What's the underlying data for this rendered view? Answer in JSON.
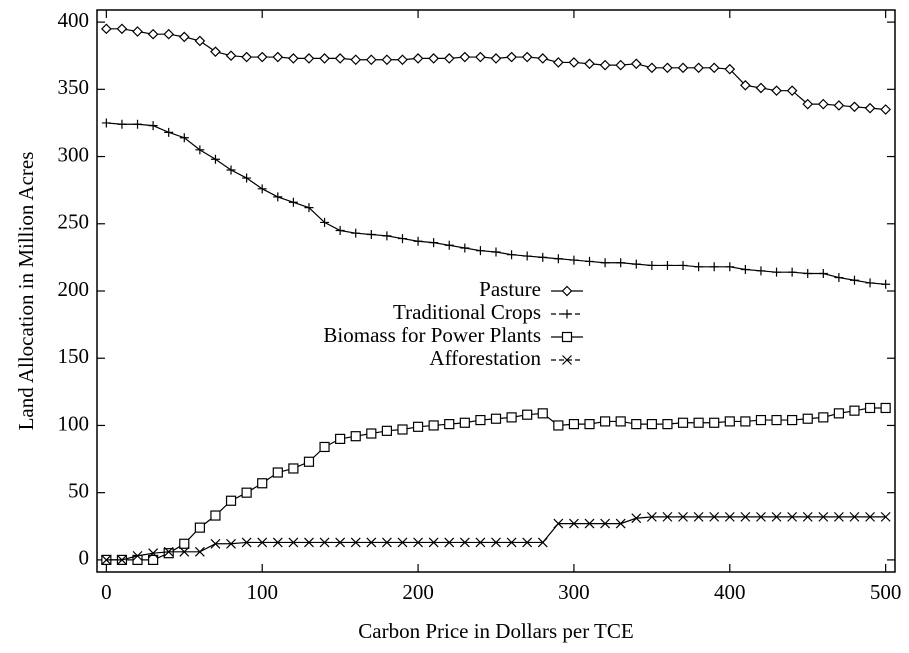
{
  "chart_data": {
    "type": "line",
    "xlabel": "Carbon Price in Dollars per TCE",
    "ylabel": "Land Allocation in Million Acres",
    "x": [
      0,
      10,
      20,
      30,
      40,
      50,
      60,
      70,
      80,
      90,
      100,
      110,
      120,
      130,
      140,
      150,
      160,
      170,
      180,
      190,
      200,
      210,
      220,
      230,
      240,
      250,
      260,
      270,
      280,
      290,
      300,
      310,
      320,
      330,
      340,
      350,
      360,
      370,
      380,
      390,
      400,
      410,
      420,
      430,
      440,
      450,
      460,
      470,
      480,
      490,
      500
    ],
    "xlim": [
      -6,
      506
    ],
    "xticks": [
      0,
      100,
      200,
      300,
      400,
      500
    ],
    "ylim": [
      -9,
      409
    ],
    "yticks": [
      0,
      50,
      100,
      150,
      200,
      250,
      300,
      350,
      400
    ],
    "legend": "center",
    "series": [
      {
        "name": "Pasture",
        "color": "#000000",
        "marker": "diamond",
        "dash": false,
        "values": [
          395,
          395,
          393,
          391,
          391,
          389,
          386,
          378,
          375,
          374,
          374,
          374,
          373,
          373,
          373,
          373,
          372,
          372,
          372,
          372,
          373,
          373,
          373,
          374,
          374,
          373,
          374,
          374,
          373,
          370,
          370,
          369,
          368,
          368,
          369,
          366,
          366,
          366,
          366,
          366,
          365,
          353,
          351,
          349,
          349,
          339,
          339,
          338,
          337,
          336,
          335
        ]
      },
      {
        "name": "Traditional Crops",
        "color": "#000000",
        "marker": "plus",
        "dash": true,
        "values": [
          325,
          324,
          324,
          323,
          318,
          314,
          305,
          298,
          290,
          284,
          276,
          270,
          266,
          262,
          251,
          245,
          243,
          242,
          241,
          239,
          237,
          236,
          234,
          232,
          230,
          229,
          227,
          226,
          225,
          224,
          223,
          222,
          221,
          221,
          220,
          219,
          219,
          219,
          218,
          218,
          218,
          216,
          215,
          214,
          214,
          213,
          213,
          210,
          208,
          206,
          205
        ]
      },
      {
        "name": "Biomass for Power Plants",
        "color": "#000000",
        "marker": "square",
        "dash": false,
        "values": [
          0,
          0,
          0,
          0,
          5,
          12,
          24,
          33,
          44,
          50,
          57,
          65,
          68,
          73,
          84,
          90,
          92,
          94,
          96,
          97,
          99,
          100,
          101,
          102,
          104,
          105,
          106,
          108,
          109,
          100,
          101,
          101,
          103,
          103,
          101,
          101,
          101,
          102,
          102,
          102,
          103,
          103,
          104,
          104,
          104,
          105,
          106,
          109,
          111,
          113,
          113
        ]
      },
      {
        "name": "Afforestation",
        "color": "#000000",
        "marker": "x",
        "dash": true,
        "values": [
          0,
          0,
          3,
          5,
          6,
          6,
          6,
          12,
          12,
          13,
          13,
          13,
          13,
          13,
          13,
          13,
          13,
          13,
          13,
          13,
          13,
          13,
          13,
          13,
          13,
          13,
          13,
          13,
          13,
          27,
          27,
          27,
          27,
          27,
          31,
          32,
          32,
          32,
          32,
          32,
          32,
          32,
          32,
          32,
          32,
          32,
          32,
          32,
          32,
          32,
          32
        ]
      }
    ]
  }
}
